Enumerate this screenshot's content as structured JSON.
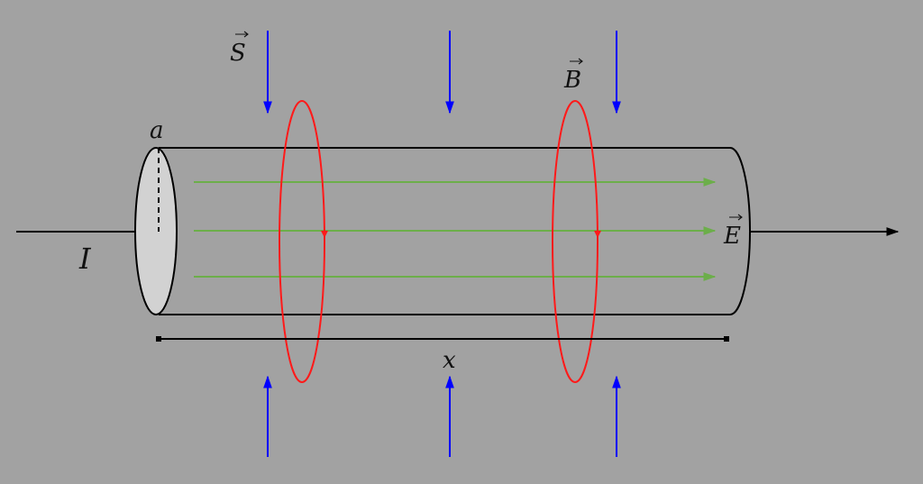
{
  "labels": {
    "radius": "a",
    "current": "I",
    "poynting": "S",
    "magnetic": "B",
    "electric": "E",
    "length": "x"
  },
  "colors": {
    "background": "#a2a2a2",
    "wire_outline": "#000000",
    "wire_end_face": "#d2d2d2",
    "poynting_arrows": "#0000ff",
    "magnetic_loops": "#ff1a1a",
    "electric_field_lines": "#6cae4a",
    "current_arrow": "#000000"
  }
}
